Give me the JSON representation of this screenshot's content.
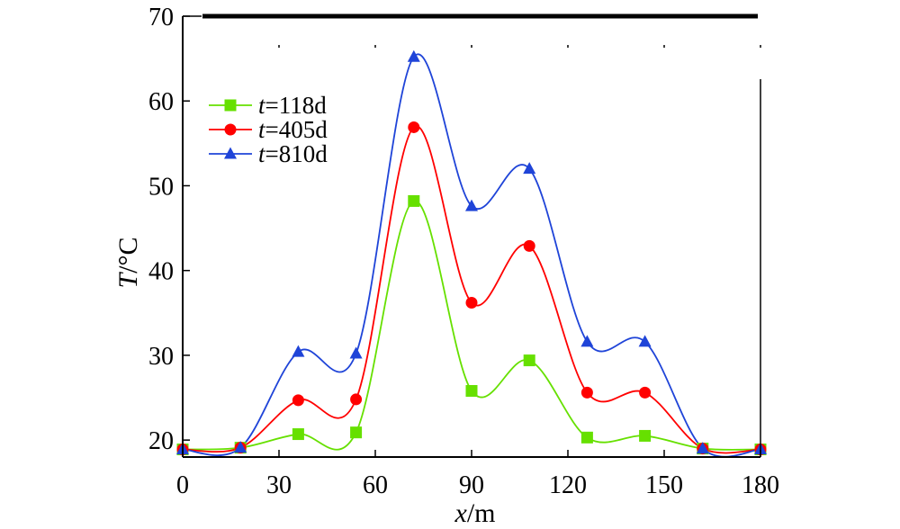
{
  "chart_data": {
    "type": "line",
    "xlabel_var": "x",
    "xlabel_unit": "/m",
    "ylabel_var": "T",
    "ylabel_unit": "/°C",
    "xlim": [
      0,
      180
    ],
    "ylim": [
      18,
      70
    ],
    "xticks": [
      0,
      30,
      60,
      90,
      120,
      150,
      180
    ],
    "yticks": [
      20,
      30,
      40,
      50,
      60,
      70
    ],
    "grid": false,
    "legend_position": "top-left",
    "x": [
      0,
      18,
      36,
      54,
      72,
      90,
      108,
      126,
      144,
      162,
      180
    ],
    "series": [
      {
        "var": "t",
        "value": "=118d",
        "color": "#66e000",
        "marker": "square",
        "values": [
          18.9,
          19.1,
          20.7,
          20.9,
          48.2,
          25.8,
          29.4,
          20.3,
          20.5,
          19.0,
          18.9
        ]
      },
      {
        "var": "t",
        "value": "=405d",
        "color": "#ff0000",
        "marker": "circle",
        "values": [
          18.9,
          19.1,
          24.7,
          24.8,
          56.9,
          36.2,
          42.9,
          25.6,
          25.6,
          19.0,
          18.9
        ]
      },
      {
        "var": "t",
        "value": "=810d",
        "color": "#1f44d8",
        "marker": "triangle",
        "values": [
          18.9,
          19.1,
          30.4,
          30.2,
          65.2,
          47.6,
          52.0,
          31.6,
          31.6,
          19.0,
          18.9
        ]
      }
    ]
  }
}
